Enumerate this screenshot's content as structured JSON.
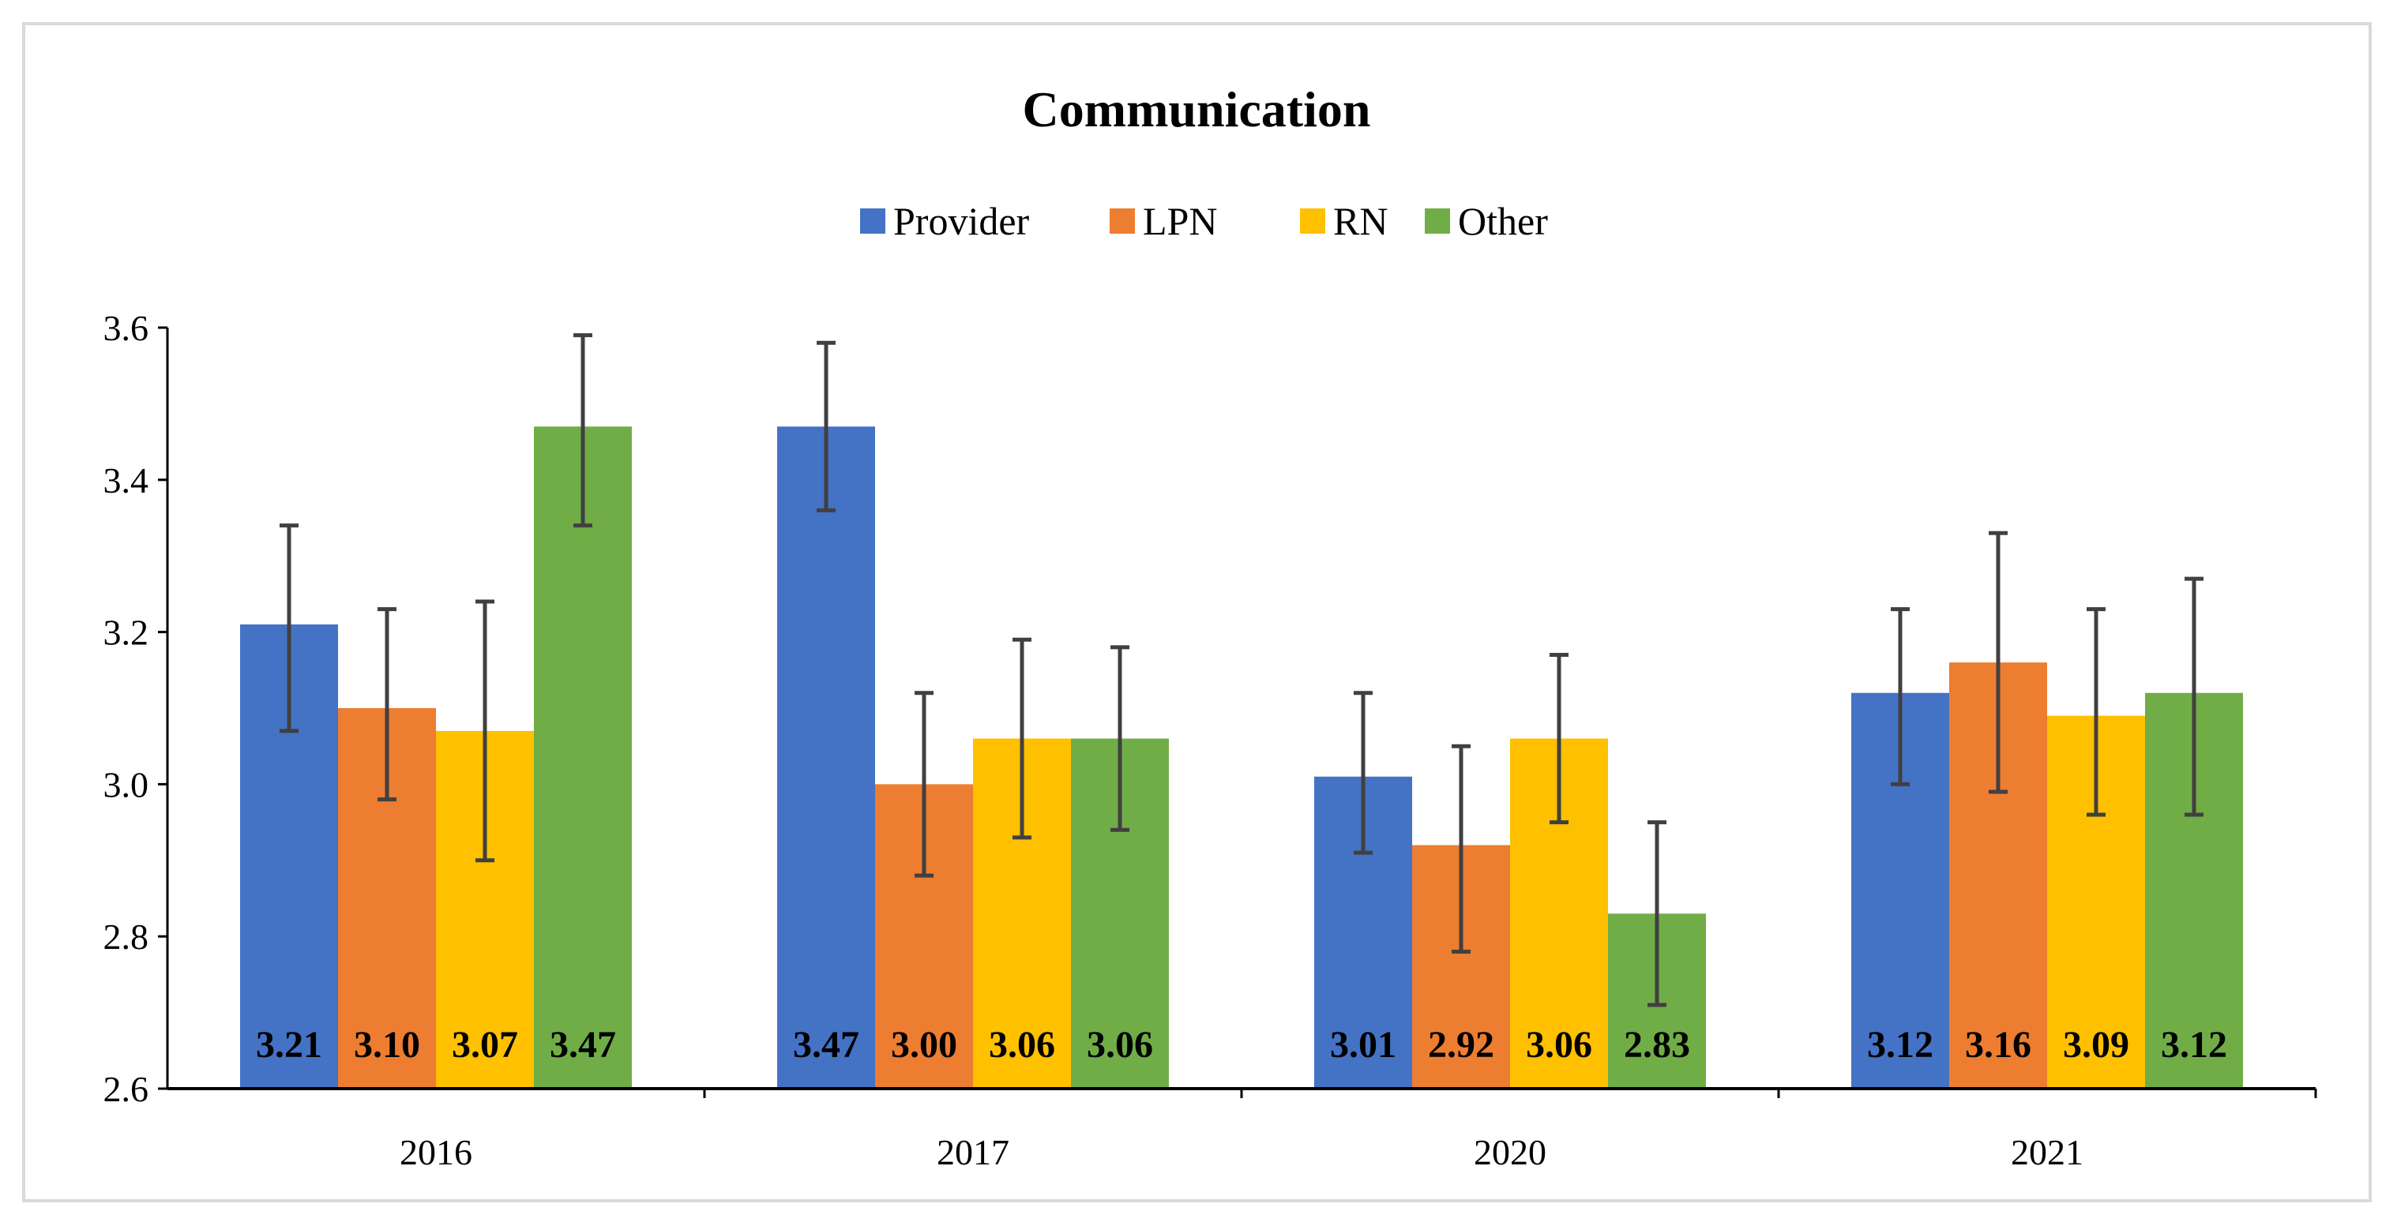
{
  "chart_data": {
    "type": "bar",
    "title": "Communication",
    "xlabel": "",
    "ylabel": "",
    "categories": [
      "2016",
      "2017",
      "2020",
      "2021"
    ],
    "ylim": [
      2.6,
      3.6
    ],
    "yticks": [
      2.6,
      2.8,
      3.0,
      3.2,
      3.4,
      3.6
    ],
    "ytick_labels": [
      "2.6",
      "2.8",
      "3.0",
      "3.2",
      "3.4",
      "3.6"
    ],
    "grid": false,
    "legend_position": "top-center",
    "error_bars": true,
    "series": [
      {
        "name": "Provider",
        "color": "#4472C4",
        "values": [
          3.21,
          3.47,
          3.01,
          3.12
        ],
        "value_labels": [
          "3.21",
          "3.47",
          "3.01",
          "3.12"
        ],
        "error_low": [
          3.07,
          3.36,
          2.91,
          3.0
        ],
        "error_high": [
          3.34,
          3.58,
          3.12,
          3.23
        ]
      },
      {
        "name": "LPN",
        "color": "#ED7D31",
        "values": [
          3.1,
          3.0,
          2.92,
          3.16
        ],
        "value_labels": [
          "3.10",
          "3.00",
          "2.92",
          "3.16"
        ],
        "error_low": [
          2.98,
          2.88,
          2.78,
          2.99
        ],
        "error_high": [
          3.23,
          3.12,
          3.05,
          3.33
        ]
      },
      {
        "name": "RN",
        "color": "#FFC000",
        "values": [
          3.07,
          3.06,
          3.06,
          3.09
        ],
        "value_labels": [
          "3.07",
          "3.06",
          "3.06",
          "3.09"
        ],
        "error_low": [
          2.9,
          2.93,
          2.95,
          2.96
        ],
        "error_high": [
          3.24,
          3.19,
          3.17,
          3.23
        ]
      },
      {
        "name": "Other",
        "color": "#70AD47",
        "values": [
          3.47,
          3.06,
          2.83,
          3.12
        ],
        "value_labels": [
          "3.47",
          "3.06",
          "2.83",
          "3.12"
        ],
        "error_low": [
          3.34,
          2.94,
          2.71,
          2.96
        ],
        "error_high": [
          3.59,
          3.18,
          2.95,
          3.27
        ]
      }
    ]
  }
}
